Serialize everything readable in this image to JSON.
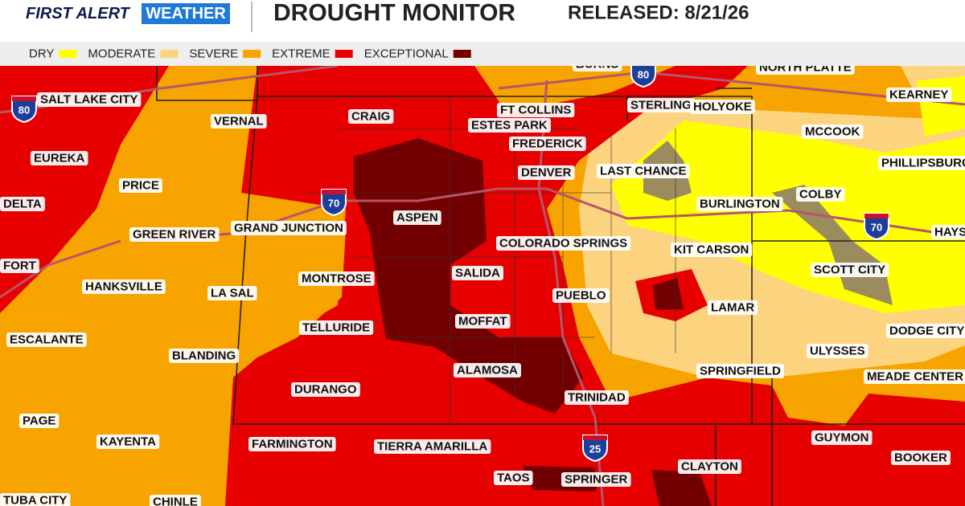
{
  "header": {
    "logo_first": "FIRST ALERT",
    "logo_second": "WEATHER",
    "title": "DROUGHT MONITOR",
    "released": "RELEASED: 8/21/26"
  },
  "legend": [
    {
      "label": "DRY",
      "color": "#ffff00"
    },
    {
      "label": "MODERATE",
      "color": "#fcd37f"
    },
    {
      "label": "SEVERE",
      "color": "#f7a400"
    },
    {
      "label": "EXTREME",
      "color": "#e60000"
    },
    {
      "label": "EXCEPTIONAL",
      "color": "#730000"
    }
  ],
  "cities": [
    "BURNS",
    "NORTH PLATTE",
    "SALT LAKE CITY",
    "VERNAL",
    "CRAIG",
    "FT COLLINS",
    "ESTES PARK",
    "STERLING",
    "HOLYOKE",
    "KEARNEY",
    "EUREKA",
    "FREDERICK",
    "MCCOOK",
    "PHILLIPSBURG",
    "DENVER",
    "LAST CHANCE",
    "PRICE",
    "DELTA",
    "COLBY",
    "ASPEN",
    "BURLINGTON",
    "GREEN RIVER",
    "GRAND JUNCTION",
    "COLORADO SPRINGS",
    "KIT CARSON",
    "HAYS",
    "FORT",
    "HANKSVILLE",
    "LA SAL",
    "MONTROSE",
    "SALIDA",
    "SCOTT CITY",
    "PUEBLO",
    "LAMAR",
    "ESCALANTE",
    "TELLURIDE",
    "MOFFAT",
    "DODGE CITY",
    "BLANDING",
    "ULYSSES",
    "ALAMOSA",
    "SPRINGFIELD",
    "MEADE CENTER",
    "DURANGO",
    "TRINIDAD",
    "PAGE",
    "GUYMON",
    "KAYENTA",
    "FARMINGTON",
    "TIERRA AMARILLA",
    "CLAYTON",
    "BOOKER",
    "TAOS",
    "SPRINGER",
    "TUBA CITY",
    "CHINLE"
  ],
  "interstates": [
    "80",
    "80",
    "70",
    "70",
    "25"
  ]
}
